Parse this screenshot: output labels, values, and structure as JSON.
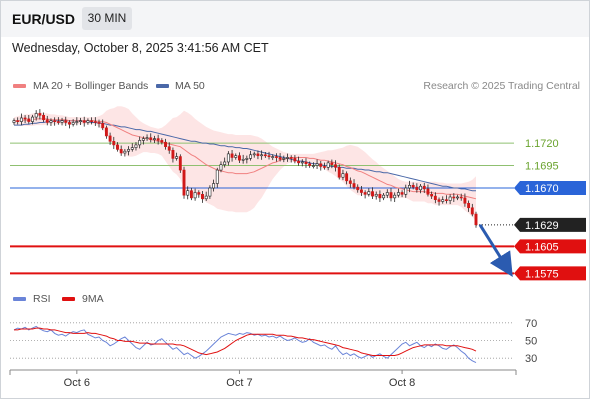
{
  "header": {
    "symbol": "EUR/USD",
    "timeframe": "30 MIN"
  },
  "timestamp": "Wednesday, October 8, 2025 3:41:56 AM CET",
  "legend": {
    "ma20_label": "MA 20 + Bollinger Bands",
    "ma50_label": "MA 50",
    "ma20_color": "#f08080",
    "ma50_color": "#4a68a8",
    "bands_fill": "#fde0e0"
  },
  "credit": "Research © 2025 Trading Central",
  "rsi_legend": {
    "rsi_label": "RSI",
    "ma9_label": "9MA",
    "rsi_color": "#6a84d8",
    "ma9_color": "#e01010"
  },
  "colors": {
    "up_candle": "#ffffff",
    "down_candle": "#d01818",
    "wick": "#222222",
    "resistance": "#8fc070",
    "current": "#2a64d8",
    "support": "#e01010",
    "last_price": "#222222",
    "arrow": "#2b5bb0"
  },
  "chart_data": {
    "type": "candlestick",
    "instrument": "EUR/USD",
    "interval": "30 MIN",
    "ylim": [
      1.1562,
      1.1768
    ],
    "x_tick_labels": [
      "Oct 6",
      "Oct 7",
      "Oct 8"
    ],
    "levels": [
      {
        "value": 1.172,
        "label": "1.1720",
        "kind": "resistance"
      },
      {
        "value": 1.1695,
        "label": "1.1695",
        "kind": "resistance"
      },
      {
        "value": 1.167,
        "label": "1.1670",
        "kind": "current"
      },
      {
        "value": 1.1629,
        "label": "1.1629",
        "kind": "last_price"
      },
      {
        "value": 1.1605,
        "label": "1.1605",
        "kind": "support"
      },
      {
        "value": 1.1575,
        "label": "1.1575",
        "kind": "support"
      }
    ],
    "closes": [
      1.1745,
      1.1744,
      1.1748,
      1.1747,
      1.1744,
      1.1749,
      1.1753,
      1.1751,
      1.1746,
      1.1743,
      1.1745,
      1.1744,
      1.1743,
      1.1745,
      1.1743,
      1.1741,
      1.1743,
      1.1744,
      1.1745,
      1.1743,
      1.1745,
      1.1744,
      1.1743,
      1.1742,
      1.1737,
      1.1728,
      1.1722,
      1.1718,
      1.1713,
      1.1709,
      1.1711,
      1.1713,
      1.1715,
      1.1718,
      1.1723,
      1.1725,
      1.1726,
      1.1724,
      1.1725,
      1.1723,
      1.1721,
      1.1716,
      1.1712,
      1.1703,
      1.1705,
      1.169,
      1.1662,
      1.1667,
      1.1659,
      1.1665,
      1.1663,
      1.1658,
      1.1661,
      1.167,
      1.1675,
      1.169,
      1.1696,
      1.1699,
      1.1708,
      1.1704,
      1.1706,
      1.1701,
      1.1702,
      1.1703,
      1.1707,
      1.1708,
      1.1706,
      1.1707,
      1.1706,
      1.1705,
      1.1705,
      1.1704,
      1.1702,
      1.1703,
      1.1704,
      1.1703,
      1.17,
      1.1698,
      1.1699,
      1.1697,
      1.1695,
      1.1695,
      1.1697,
      1.1694,
      1.1693,
      1.1698,
      1.1696,
      1.1693,
      1.1682,
      1.1686,
      1.1678,
      1.1675,
      1.1671,
      1.1668,
      1.1665,
      1.1663,
      1.1666,
      1.1661,
      1.1663,
      1.1659,
      1.1662,
      1.1665,
      1.1659,
      1.1662,
      1.1665,
      1.1663,
      1.167,
      1.1673,
      1.1671,
      1.1668,
      1.1672,
      1.1669,
      1.1663,
      1.1661,
      1.1657,
      1.1655,
      1.1657,
      1.1656,
      1.166,
      1.1659,
      1.166,
      1.1659,
      1.1653,
      1.1648,
      1.1641,
      1.1629
    ],
    "ma20": [
      1.1745,
      1.1745,
      1.1745,
      1.1746,
      1.1745,
      1.1746,
      1.1747,
      1.1747,
      1.1747,
      1.1747,
      1.1746,
      1.1746,
      1.1746,
      1.1746,
      1.1746,
      1.1745,
      1.1745,
      1.1745,
      1.1745,
      1.1745,
      1.1745,
      1.1745,
      1.1745,
      1.1744,
      1.1744,
      1.1743,
      1.1741,
      1.1739,
      1.1737,
      1.1735,
      1.1733,
      1.1731,
      1.1729,
      1.1728,
      1.1727,
      1.1726,
      1.1725,
      1.1724,
      1.1723,
      1.1722,
      1.1721,
      1.172,
      1.1719,
      1.1718,
      1.1717,
      1.1716,
      1.1713,
      1.171,
      1.1707,
      1.1705,
      1.1702,
      1.1699,
      1.1696,
      1.1694,
      1.1692,
      1.169,
      1.1689,
      1.1688,
      1.1687,
      1.1687,
      1.1686,
      1.1686,
      1.1686,
      1.1686,
      1.1687,
      1.1688,
      1.169,
      1.1692,
      1.1694,
      1.1696,
      1.1698,
      1.1699,
      1.1701,
      1.1702,
      1.1703,
      1.1704,
      1.1704,
      1.1704,
      1.1704,
      1.1704,
      1.1703,
      1.1703,
      1.1702,
      1.1701,
      1.1701,
      1.17,
      1.1699,
      1.1698,
      1.1697,
      1.1696,
      1.1694,
      1.1693,
      1.1691,
      1.1689,
      1.1688,
      1.1686,
      1.1684,
      1.1682,
      1.168,
      1.1678,
      1.1676,
      1.1674,
      1.1673,
      1.1671,
      1.167,
      1.1669,
      1.1668,
      1.1667,
      1.1666,
      1.1666,
      1.1666,
      1.1666,
      1.1665,
      1.1665,
      1.1664,
      1.1664,
      1.1664,
      1.1663,
      1.1663,
      1.1663,
      1.1663,
      1.1662,
      1.1661,
      1.166,
      1.1659,
      1.1658
    ],
    "upper_band": [
      1.1749,
      1.175,
      1.1751,
      1.1752,
      1.1752,
      1.1753,
      1.1754,
      1.1754,
      1.1754,
      1.1753,
      1.1752,
      1.1752,
      1.1751,
      1.1751,
      1.175,
      1.1749,
      1.1749,
      1.1749,
      1.1749,
      1.1749,
      1.1749,
      1.1749,
      1.1749,
      1.175,
      1.1752,
      1.1756,
      1.1758,
      1.1759,
      1.1761,
      1.1761,
      1.176,
      1.1758,
      1.1753,
      1.1749,
      1.1745,
      1.1742,
      1.174,
      1.1738,
      1.1737,
      1.1736,
      1.1737,
      1.174,
      1.1744,
      1.1748,
      1.1749,
      1.1752,
      1.1756,
      1.1754,
      1.1751,
      1.1747,
      1.1744,
      1.1741,
      1.1738,
      1.1736,
      1.1734,
      1.1733,
      1.1732,
      1.1731,
      1.173,
      1.173,
      1.1729,
      1.1729,
      1.1729,
      1.1729,
      1.1729,
      1.1728,
      1.1727,
      1.1725,
      1.1722,
      1.1719,
      1.1716,
      1.1714,
      1.1712,
      1.171,
      1.1709,
      1.1708,
      1.1708,
      1.1708,
      1.1708,
      1.1708,
      1.1708,
      1.1708,
      1.1709,
      1.171,
      1.1711,
      1.1712,
      1.1712,
      1.1713,
      1.1714,
      1.1715,
      1.1717,
      1.1718,
      1.1717,
      1.1716,
      1.1713,
      1.171,
      1.1706,
      1.1702,
      1.1699,
      1.1695,
      1.1692,
      1.1689,
      1.1686,
      1.1683,
      1.168,
      1.1678,
      1.1677,
      1.1677,
      1.1677,
      1.1677,
      1.1677,
      1.1677,
      1.1677,
      1.1677,
      1.1677,
      1.1676,
      1.1676,
      1.1675,
      1.1675,
      1.1675,
      1.1675,
      1.1675,
      1.1676,
      1.1677,
      1.1679,
      1.1683
    ],
    "lower_band": [
      1.1741,
      1.174,
      1.1739,
      1.1739,
      1.1739,
      1.1739,
      1.174,
      1.174,
      1.174,
      1.1741,
      1.1741,
      1.1741,
      1.1741,
      1.1741,
      1.1741,
      1.1741,
      1.1741,
      1.1741,
      1.1741,
      1.1741,
      1.1741,
      1.1741,
      1.1741,
      1.1738,
      1.1735,
      1.173,
      1.1724,
      1.1719,
      1.1713,
      1.1709,
      1.1707,
      1.1705,
      1.1705,
      1.1706,
      1.1708,
      1.171,
      1.171,
      1.1709,
      1.1709,
      1.1708,
      1.1706,
      1.17,
      1.1694,
      1.1688,
      1.1685,
      1.168,
      1.167,
      1.1665,
      1.1663,
      1.1663,
      1.1661,
      1.1658,
      1.1654,
      1.1652,
      1.165,
      1.1647,
      1.1646,
      1.1645,
      1.1644,
      1.1644,
      1.1643,
      1.1643,
      1.1643,
      1.1643,
      1.1645,
      1.1648,
      1.1654,
      1.1659,
      1.1666,
      1.1673,
      1.168,
      1.1685,
      1.169,
      1.1694,
      1.1697,
      1.1699,
      1.17,
      1.17,
      1.17,
      1.17,
      1.1698,
      1.1697,
      1.1695,
      1.1692,
      1.1691,
      1.1688,
      1.1686,
      1.1683,
      1.168,
      1.1677,
      1.1672,
      1.1668,
      1.1665,
      1.1662,
      1.1662,
      1.1662,
      1.1661,
      1.1661,
      1.166,
      1.166,
      1.1659,
      1.1659,
      1.1659,
      1.1659,
      1.1659,
      1.1659,
      1.1659,
      1.1657,
      1.1655,
      1.1655,
      1.1655,
      1.1655,
      1.1653,
      1.1653,
      1.1651,
      1.1651,
      1.1651,
      1.1651,
      1.1651,
      1.1651,
      1.1651,
      1.1649,
      1.1645,
      1.1642,
      1.1638,
      1.1633
    ],
    "ma50": [
      1.174,
      1.174,
      1.174,
      1.1741,
      1.1741,
      1.1742,
      1.1742,
      1.1743,
      1.1743,
      1.1744,
      1.1744,
      1.1745,
      1.1745,
      1.1745,
      1.1745,
      1.1745,
      1.1745,
      1.1745,
      1.1745,
      1.1744,
      1.1744,
      1.1743,
      1.1743,
      1.1742,
      1.1742,
      1.1741,
      1.174,
      1.174,
      1.1739,
      1.1738,
      1.1738,
      1.1737,
      1.1736,
      1.1735,
      1.1735,
      1.1734,
      1.1733,
      1.1733,
      1.1732,
      1.1731,
      1.173,
      1.1729,
      1.1728,
      1.1727,
      1.1726,
      1.1725,
      1.1724,
      1.1723,
      1.1722,
      1.1722,
      1.1721,
      1.172,
      1.172,
      1.1719,
      1.1719,
      1.1718,
      1.1717,
      1.1717,
      1.1716,
      1.1716,
      1.1715,
      1.1715,
      1.1714,
      1.1714,
      1.1713,
      1.1712,
      1.1711,
      1.171,
      1.1709,
      1.1708,
      1.1707,
      1.1706,
      1.1705,
      1.1704,
      1.1703,
      1.1702,
      1.1701,
      1.17,
      1.17,
      1.1699,
      1.1698,
      1.1697,
      1.1697,
      1.1696,
      1.1695,
      1.1695,
      1.1694,
      1.1694,
      1.1693,
      1.1693,
      1.1692,
      1.1692,
      1.1692,
      1.1691,
      1.1691,
      1.169,
      1.169,
      1.1689,
      1.1688,
      1.1688,
      1.1687,
      1.1687,
      1.1686,
      1.1685,
      1.1684,
      1.1683,
      1.1682,
      1.1681,
      1.168,
      1.1679,
      1.1678,
      1.1677,
      1.1676,
      1.1675,
      1.1674,
      1.1673,
      1.1672,
      1.1672,
      1.1671,
      1.167,
      1.167,
      1.1669,
      1.1669,
      1.1668,
      1.1667,
      1.1667
    ],
    "rsi": {
      "ylim": [
        20,
        80
      ],
      "ticks": [
        70,
        50,
        30
      ],
      "rsi_values": [
        62,
        64,
        63,
        65,
        62,
        64,
        66,
        63,
        61,
        60,
        62,
        58,
        56,
        57,
        55,
        58,
        60,
        59,
        61,
        62,
        57,
        55,
        53,
        54,
        50,
        48,
        44,
        46,
        49,
        52,
        54,
        50,
        46,
        42,
        40,
        44,
        48,
        45,
        46,
        50,
        52,
        48,
        44,
        40,
        42,
        38,
        34,
        36,
        33,
        30,
        32,
        35,
        38,
        42,
        46,
        50,
        54,
        56,
        58,
        57,
        56,
        58,
        57,
        59,
        58,
        56,
        57,
        55,
        56,
        54,
        55,
        53,
        55,
        52,
        50,
        51,
        53,
        50,
        48,
        49,
        52,
        48,
        46,
        44,
        45,
        42,
        40,
        44,
        38,
        34,
        36,
        33,
        35,
        32,
        30,
        32,
        34,
        31,
        33,
        35,
        32,
        30,
        34,
        38,
        42,
        46,
        48,
        44,
        46,
        48,
        44,
        42,
        45,
        43,
        46,
        44,
        41,
        40,
        43,
        45,
        42,
        38,
        35,
        30,
        27,
        25
      ],
      "ma9_values": [
        62,
        62,
        63,
        63,
        63,
        63,
        64,
        64,
        63,
        63,
        62,
        62,
        61,
        60,
        59,
        59,
        58,
        58,
        58,
        58,
        59,
        58,
        58,
        57,
        56,
        55,
        53,
        52,
        50,
        50,
        49,
        49,
        49,
        48,
        47,
        47,
        47,
        46,
        46,
        46,
        46,
        46,
        46,
        46,
        45,
        45,
        44,
        42,
        40,
        38,
        36,
        35,
        34,
        35,
        36,
        37,
        39,
        41,
        44,
        47,
        50,
        52,
        54,
        56,
        57,
        57,
        57,
        57,
        57,
        57,
        57,
        56,
        56,
        56,
        55,
        55,
        54,
        53,
        53,
        52,
        51,
        51,
        50,
        49,
        48,
        47,
        46,
        45,
        44,
        42,
        41,
        40,
        39,
        38,
        36,
        35,
        34,
        33,
        33,
        33,
        33,
        33,
        33,
        33,
        34,
        36,
        38,
        40,
        42,
        43,
        44,
        45,
        45,
        45,
        45,
        45,
        45,
        44,
        44,
        44,
        44,
        43,
        42,
        41,
        40,
        38
      ]
    },
    "annotation": "projected move from last price toward 1.1575 support"
  }
}
